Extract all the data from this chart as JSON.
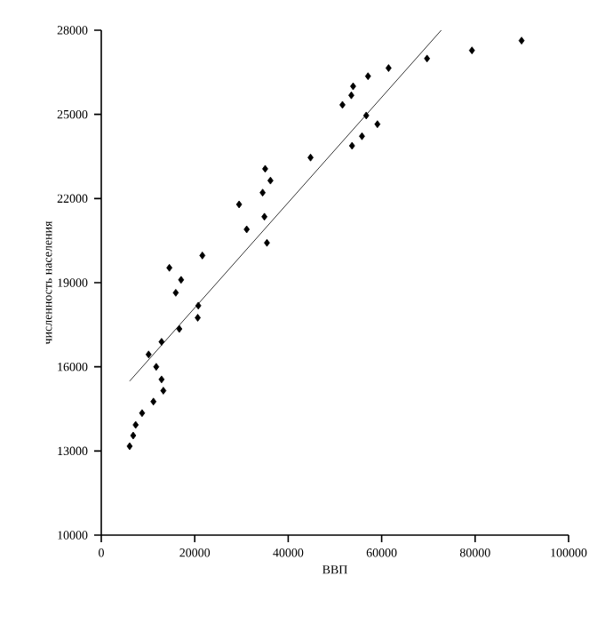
{
  "chart_data": {
    "type": "scatter",
    "xlabel": "ВВП",
    "ylabel": "численность населения",
    "xlim": [
      0,
      100000
    ],
    "ylim": [
      10000,
      28000
    ],
    "xticks": [
      0,
      20000,
      40000,
      60000,
      80000,
      100000
    ],
    "yticks": [
      10000,
      13000,
      16000,
      19000,
      22000,
      25000,
      28000
    ],
    "grid": false,
    "series": [
      {
        "color": "#000000",
        "marker": "diamond",
        "x": [
          6070,
          6830,
          7360,
          8730,
          11160,
          13280,
          12900,
          11760,
          10130,
          12900,
          16700,
          20640,
          20760,
          15940,
          17080,
          14570,
          21630,
          29490,
          31120,
          34530,
          35070,
          36200,
          34910,
          35450,
          44780,
          51610,
          53510,
          53890,
          53660,
          55790,
          56700,
          57080,
          59090,
          61480,
          69710,
          79320,
          89940
        ],
        "values": [
          13170,
          13550,
          13930,
          14350,
          14760,
          15150,
          15550,
          16000,
          16440,
          16890,
          17350,
          17750,
          18180,
          18640,
          19100,
          19530,
          19970,
          21790,
          20900,
          22210,
          23060,
          22640,
          21350,
          20420,
          23460,
          25340,
          25680,
          26000,
          23880,
          24220,
          24960,
          26360,
          24650,
          26650,
          26990,
          27280,
          27630
        ]
      },
      {
        "type": "line",
        "color": "#000000",
        "marker": "none",
        "line_style": "solid",
        "x": [
          6070,
          72750
        ],
        "values": [
          15490,
          28000
        ]
      }
    ]
  }
}
